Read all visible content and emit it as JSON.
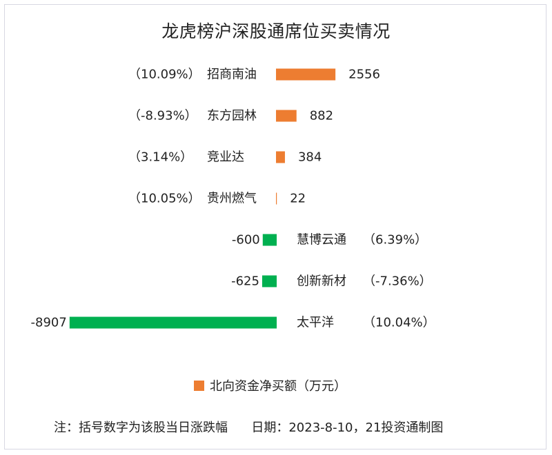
{
  "chart_data": {
    "type": "bar",
    "orientation": "horizontal",
    "title": "龙虎榜沪深股通席位买卖情况",
    "colors": {
      "positive": "#ed7d31",
      "negative": "#00b050"
    },
    "rows": [
      {
        "name": "招商南油",
        "value": 2556,
        "change": "（10.09%）"
      },
      {
        "name": "东方园林",
        "value": 882,
        "change": "（-8.93%）"
      },
      {
        "name": "竞业达",
        "value": 384,
        "change": "（3.14%）"
      },
      {
        "name": "贵州燃气",
        "value": 22,
        "change": "（10.05%）"
      },
      {
        "name": "慧博云通",
        "value": -600,
        "change": "（6.39%）"
      },
      {
        "name": "创新新材",
        "value": -625,
        "change": "（-7.36%）"
      },
      {
        "name": "太平洋",
        "value": -8907,
        "change": "（10.04%）"
      }
    ],
    "legend": {
      "label": "北向资金净买额（万元）",
      "position": "bottom"
    },
    "grid": false
  },
  "footer": {
    "note": "注：括号数字为该股当日涨跌幅",
    "date": "日期：2023-8-10，21投资通制图"
  }
}
